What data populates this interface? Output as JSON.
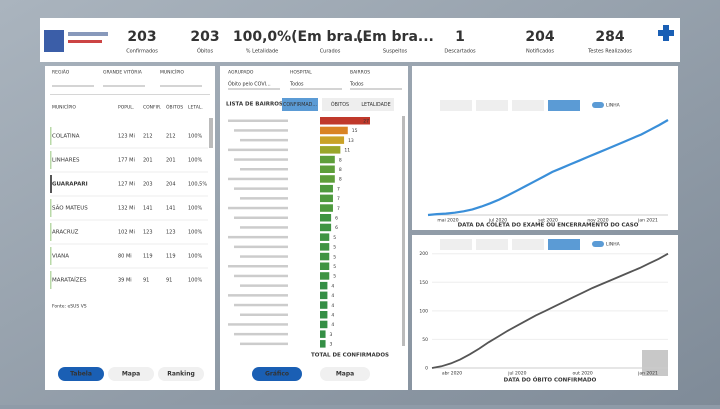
{
  "header": {
    "kpis": [
      {
        "value": "203",
        "label": "Confirmados"
      },
      {
        "value": "203",
        "label": "Óbitos"
      },
      {
        "value": "100,0%",
        "label": "% Letalidade"
      },
      {
        "value": "(Em bra...",
        "label": "Curados"
      },
      {
        "value": "(Em bra...",
        "label": "Suspeitos"
      },
      {
        "value": "1",
        "label": "Descartados"
      },
      {
        "value": "204",
        "label": "Notificados"
      },
      {
        "value": "284",
        "label": "Testes Realizados"
      }
    ]
  },
  "left": {
    "filters": [
      "REGIÃO",
      "GRANDE VITÓRIA",
      "MUNICÍPIO"
    ],
    "table": {
      "columns": [
        "MUNICÍPIO",
        "POPUL.",
        "CONFIR.",
        "ÓBITOS",
        "LETAL."
      ],
      "rows": [
        [
          "COLATINA",
          "123 Mi",
          "212",
          "212",
          "100%"
        ],
        [
          "LINHARES",
          "177 Mi",
          "201",
          "201",
          "100%"
        ],
        [
          "GUARAPARI",
          "127 Mi",
          "203",
          "204",
          "100,5%"
        ],
        [
          "SÃO MATEUS",
          "132 Mi",
          "141",
          "141",
          "100%"
        ],
        [
          "ARACRUZ",
          "102 Mi",
          "123",
          "123",
          "100%"
        ],
        [
          "VIANA",
          "80 Mi",
          "119",
          "119",
          "100%"
        ],
        [
          "MARATAÍZES",
          "39 Mi",
          "91",
          "91",
          "100%"
        ]
      ],
      "note": "Fonte: eSUS VS"
    },
    "buttons": [
      "Tabela",
      "Mapa",
      "Ranking"
    ]
  },
  "middle": {
    "filters": [
      "AGRUPADO",
      "HOSPITAL",
      "BAIRROS"
    ],
    "filter_values": [
      "Óbito pelo COVI...",
      "Todos",
      "Todos"
    ],
    "title": "LISTA DE BAIRROS",
    "tabs": [
      "CONFIRMAD...",
      "ÓBITOS",
      "LETALIDADE"
    ],
    "values": [
      27,
      15,
      13,
      11,
      8,
      8,
      8,
      7,
      7,
      7,
      6,
      6,
      5,
      5,
      5,
      5,
      5,
      4,
      4,
      4,
      4,
      4,
      3,
      3
    ],
    "colors": [
      "#c0392b",
      "#d98324",
      "#c9a227",
      "#9aa62a",
      "#5e9e3a",
      "#5e9e3a",
      "#5e9e3a",
      "#4e9a3e",
      "#4e9a3e",
      "#4e9a3e",
      "#3f9442",
      "#3f9442",
      "#3f9442",
      "#3f9442",
      "#3f9442",
      "#3f9442",
      "#3f9442",
      "#358f45",
      "#358f45",
      "#358f45",
      "#358f45",
      "#358f45",
      "#358f45",
      "#358f45"
    ],
    "footer": "TOTAL DE CONFIRMADOS",
    "buttons": [
      "Gráfico",
      "Mapa"
    ]
  },
  "charts": [
    {
      "toggle": "LINHA",
      "xlabel": "DATA DA COLETA DO EXAME OU ENCERRAMENTO DO CASO",
      "color": "#3a8fd9",
      "ylim": [
        0,
        220
      ],
      "xtick_labels": [
        "mai 2020",
        "jul 2020",
        "set 2020",
        "nov 2020",
        "jan 2021"
      ],
      "values": [
        0,
        2,
        3,
        5,
        8,
        12,
        18,
        25,
        33,
        42,
        52,
        62,
        72,
        82,
        92,
        100,
        108,
        116,
        124,
        132,
        140,
        148,
        156,
        164,
        172,
        182,
        192,
        203
      ]
    },
    {
      "toggle": "LINHA",
      "xlabel": "DATA DO ÓBITO CONFIRMADO",
      "color": "#555555",
      "ylim": [
        0,
        210
      ],
      "yticks": [
        0,
        50,
        100,
        150,
        200
      ],
      "xtick_labels": [
        "abr 2020",
        "jul 2020",
        "out 2020",
        "jan 2021"
      ],
      "values": [
        0,
        3,
        8,
        15,
        24,
        34,
        45,
        55,
        65,
        74,
        83,
        92,
        100,
        108,
        116,
        124,
        132,
        140,
        147,
        154,
        161,
        168,
        175,
        183,
        191,
        200
      ]
    }
  ]
}
